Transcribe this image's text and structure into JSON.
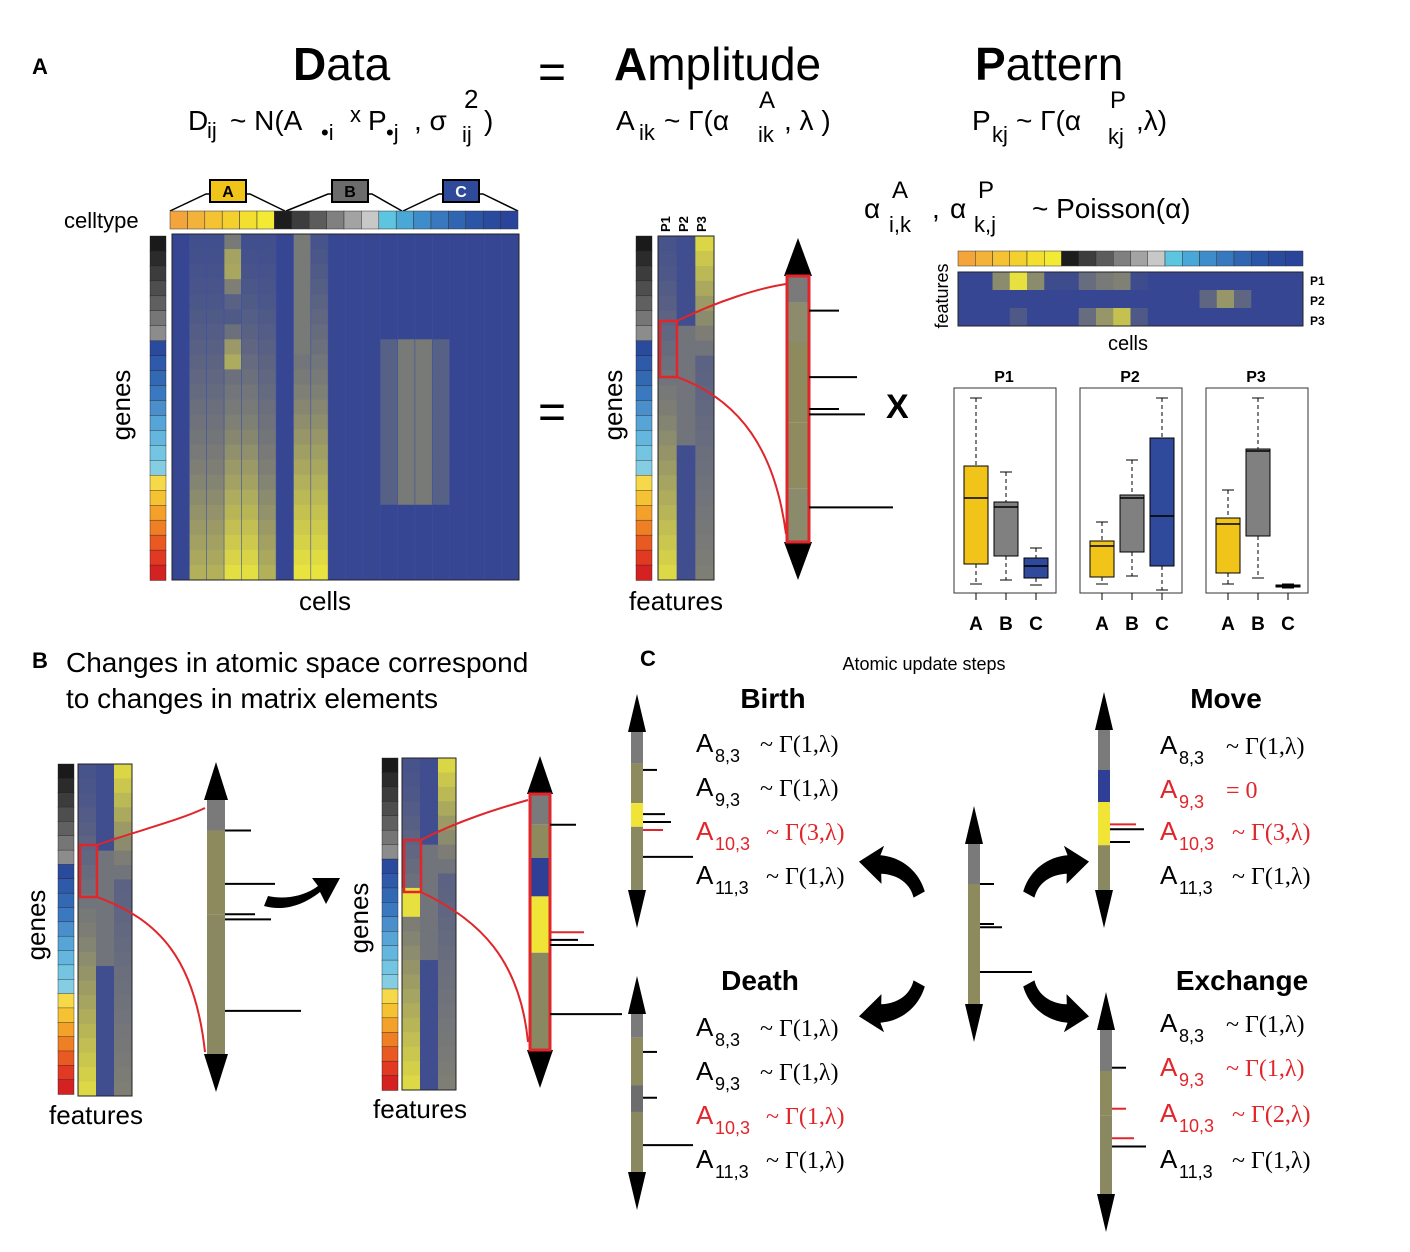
{
  "panel_a": {
    "label": "A",
    "data_title_bold": "D",
    "data_title_rest": "ata",
    "equals": "=",
    "amp_title_bold": "A",
    "amp_title_rest": "mplitude",
    "pat_title_bold": "P",
    "pat_title_rest": "attern",
    "data_eq": {
      "head": "D",
      "head_sub": "ij",
      "mid": "~ N(A",
      "a_sub": "•i",
      "times": "x",
      "p": "P",
      "p_sub": "•j",
      "sigma": ", σ",
      "sigma_sub": "ij",
      "sigma_sup": "2",
      "close": ")"
    },
    "amp_eq": {
      "head": "A",
      "head_sub": "ik",
      "mid": "~ Γ(α",
      "alpha_sub": "ik",
      "alpha_sup": "A",
      "close": ", λ )"
    },
    "pat_eq": {
      "head": "P",
      "head_sub": "kj",
      "mid": "~ Γ(α",
      "alpha_sub": "kj",
      "alpha_sup": "P",
      "close": ",λ)"
    },
    "prior": {
      "a": "α",
      "a_sub": "i,k",
      "a_sup": "A",
      "comma": ",",
      "b": "α",
      "b_sub": "k,j",
      "b_sup": "P",
      "rest": "~  Poisson(α)"
    },
    "celltype_label": "celltype",
    "celltype_groups": [
      "A",
      "B",
      "C"
    ],
    "genes_label": "genes",
    "cells_label": "cells",
    "equals2": "=",
    "features_label": "features",
    "factor_labels": [
      "P1",
      "P2",
      "P3"
    ],
    "times_label": "X",
    "pattern_rows": [
      "P1",
      "P2",
      "P3"
    ],
    "pattern_features_label": "features",
    "pattern_cells_label": "cells",
    "box_titles": [
      "P1",
      "P2",
      "P3"
    ],
    "box_categories": [
      "A",
      "B",
      "C"
    ]
  },
  "panel_b": {
    "label": "B",
    "title_line1": "Changes in atomic space correspond",
    "title_line2": "to changes in matrix elements",
    "genes_label": "genes",
    "features_label": "features"
  },
  "panel_c": {
    "label": "C",
    "subtitle": "Atomic update steps",
    "birth": {
      "title": "Birth",
      "lines": [
        {
          "s": "8,3",
          "rhs": "~ Γ(1,λ)",
          "red": false
        },
        {
          "s": "9,3",
          "rhs": "~ Γ(1,λ)",
          "red": false
        },
        {
          "s": "10,3",
          "rhs": "~ Γ(3,λ)",
          "red": true
        },
        {
          "s": "11,3",
          "rhs": "~ Γ(1,λ)",
          "red": false
        }
      ]
    },
    "move": {
      "title": "Move",
      "lines": [
        {
          "s": "8,3",
          "rhs": "~ Γ(1,λ)",
          "red": false
        },
        {
          "s": "9,3",
          "rhs": "= 0",
          "red": true
        },
        {
          "s": "10,3",
          "rhs": "~ Γ(3,λ)",
          "red": true
        },
        {
          "s": "11,3",
          "rhs": "~ Γ(1,λ)",
          "red": false
        }
      ]
    },
    "death": {
      "title": "Death",
      "lines": [
        {
          "s": "8,3",
          "rhs": "~ Γ(1,λ)",
          "red": false
        },
        {
          "s": "9,3",
          "rhs": "~ Γ(1,λ)",
          "red": false
        },
        {
          "s": "10,3",
          "rhs": "~ Γ(1,λ)",
          "red": true
        },
        {
          "s": "11,3",
          "rhs": "~ Γ(1,λ)",
          "red": false
        }
      ]
    },
    "exchange": {
      "title": "Exchange",
      "lines": [
        {
          "s": "8,3",
          "rhs": "~ Γ(1,λ)",
          "red": false
        },
        {
          "s": "9,3",
          "rhs": "~ Γ(1,λ)",
          "red": true
        },
        {
          "s": "10,3",
          "rhs": "~ Γ(2,λ)",
          "red": true
        },
        {
          "s": "11,3",
          "rhs": "~ Γ(1,λ)",
          "red": false
        }
      ]
    },
    "symbol": "A"
  },
  "chart_data": [
    {
      "type": "box",
      "title": "P1",
      "categories": [
        "A",
        "B",
        "C"
      ]
    },
    {
      "type": "box",
      "title": "P2",
      "categories": [
        "A",
        "B",
        "C"
      ]
    },
    {
      "type": "box",
      "title": "P3",
      "categories": [
        "A",
        "B",
        "C"
      ]
    }
  ],
  "colors": {
    "heat_low": "#2e3f95",
    "heat_high": "#f2ec3a",
    "highlight": "#e0262b",
    "celltype_a": "#f0c419",
    "celltype_b": "#6b6b6b",
    "celltype_c": "#2f4a9a"
  }
}
